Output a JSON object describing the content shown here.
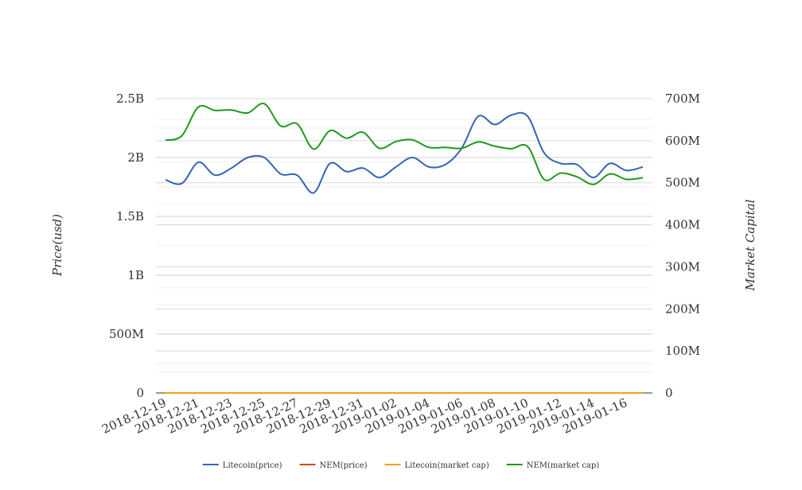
{
  "chart_data": {
    "type": "line",
    "x": [
      "2018-12-19",
      "2018-12-20",
      "2018-12-21",
      "2018-12-22",
      "2018-12-23",
      "2018-12-24",
      "2018-12-25",
      "2018-12-26",
      "2018-12-27",
      "2018-12-28",
      "2018-12-29",
      "2018-12-30",
      "2018-12-31",
      "2019-01-01",
      "2019-01-02",
      "2019-01-03",
      "2019-01-04",
      "2019-01-05",
      "2019-01-06",
      "2019-01-07",
      "2019-01-08",
      "2019-01-09",
      "2019-01-10",
      "2019-01-11",
      "2019-01-12",
      "2019-01-13",
      "2019-01-14",
      "2019-01-15",
      "2019-01-16",
      "2019-01-17"
    ],
    "x_tick_labels": [
      "2018-12-19",
      "2018-12-21",
      "2018-12-23",
      "2018-12-25",
      "2018-12-27",
      "2018-12-29",
      "2018-12-31",
      "2019-01-02",
      "2019-01-04",
      "2019-01-06",
      "2019-01-08",
      "2019-01-10",
      "2019-01-12",
      "2019-01-14",
      "2019-01-16"
    ],
    "y_left": {
      "label": "Price(usd)",
      "range": [
        0,
        2500000000
      ],
      "ticks": [
        0,
        500000000,
        1000000000,
        1500000000,
        2000000000,
        2500000000
      ],
      "tick_labels": [
        "0",
        "500M",
        "1B",
        "1.5B",
        "2B",
        "2.5B"
      ]
    },
    "y_right": {
      "label": "Market Capital",
      "range": [
        0,
        700000000
      ],
      "ticks": [
        0,
        100000000,
        200000000,
        300000000,
        400000000,
        500000000,
        600000000,
        700000000
      ],
      "tick_labels": [
        "0",
        "100M",
        "200M",
        "300M",
        "400M",
        "500M",
        "600M",
        "700M"
      ]
    },
    "grid": true,
    "legend_position": "bottom",
    "series": [
      {
        "name": "Litecoin(price)",
        "axis": "left",
        "color": "#3465b3",
        "values": [
          1810000000,
          1780000000,
          1960000000,
          1850000000,
          1910000000,
          2000000000,
          2000000000,
          1860000000,
          1850000000,
          1700000000,
          1950000000,
          1880000000,
          1910000000,
          1830000000,
          1920000000,
          2000000000,
          1920000000,
          1940000000,
          2080000000,
          2350000000,
          2280000000,
          2360000000,
          2350000000,
          2040000000,
          1950000000,
          1940000000,
          1830000000,
          1950000000,
          1890000000,
          1920000000
        ]
      },
      {
        "name": "NEM(price)",
        "axis": "left",
        "color": "#d04a16",
        "values": [
          0.3,
          0.29,
          0.31,
          0.3,
          0.3,
          0.31,
          0.3,
          0.29,
          0.28,
          0.27,
          0.29,
          0.28,
          0.28,
          0.27,
          0.28,
          0.28,
          0.27,
          0.27,
          0.28,
          0.29,
          0.28,
          0.28,
          0.28,
          0.25,
          0.24,
          0.24,
          0.23,
          0.23,
          0.22,
          0.22
        ]
      },
      {
        "name": "Litecoin(market cap)",
        "axis": "right",
        "color": "#f0a30a",
        "values": [
          1.7,
          1.7,
          1.8,
          1.7,
          1.8,
          1.8,
          1.8,
          1.7,
          1.7,
          1.6,
          1.8,
          1.7,
          1.7,
          1.7,
          1.8,
          1.8,
          1.7,
          1.8,
          1.9,
          2.1,
          2.0,
          2.1,
          2.1,
          1.9,
          1.8,
          1.8,
          1.7,
          1.8,
          1.7,
          1.7
        ]
      },
      {
        "name": "NEM(market cap)",
        "axis": "right",
        "color": "#1e9a1e",
        "values": [
          601000000,
          612000000,
          680000000,
          672000000,
          673000000,
          666000000,
          688000000,
          635000000,
          640000000,
          580000000,
          624000000,
          606000000,
          620000000,
          582000000,
          598000000,
          602000000,
          584000000,
          584000000,
          582000000,
          597000000,
          587000000,
          581000000,
          586000000,
          508000000,
          523000000,
          514000000,
          496000000,
          521000000,
          508000000,
          512000000
        ]
      }
    ]
  }
}
